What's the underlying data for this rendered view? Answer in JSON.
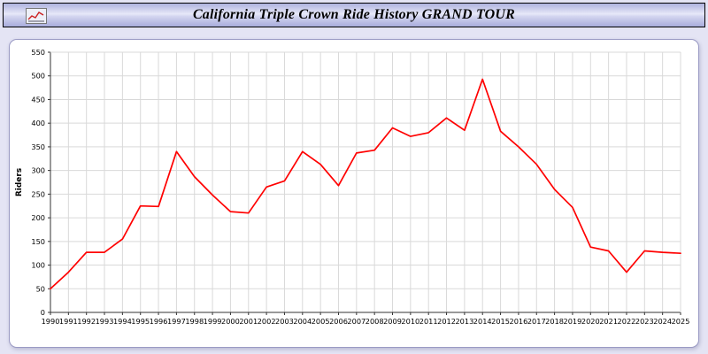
{
  "title_bar": {
    "title": "California Triple Crown Ride History GRAND TOUR"
  },
  "colors": {
    "line": "#ff0000",
    "grid": "#d9d9d9",
    "axis": "#333333",
    "tick_text": "#000000",
    "page_bg": "#e4e4f4",
    "panel_bg": "#ffffff"
  },
  "chart_data": {
    "type": "line",
    "title": "California Triple Crown Ride History GRAND TOUR",
    "xlabel": "",
    "ylabel": "Riders",
    "ylim": [
      0,
      550
    ],
    "ytick_step": 50,
    "grid": true,
    "legend_position": "none",
    "x": [
      1990,
      1991,
      1992,
      1993,
      1994,
      1995,
      1996,
      1997,
      1998,
      1999,
      2000,
      2001,
      2002,
      2003,
      2004,
      2005,
      2006,
      2007,
      2008,
      2009,
      2010,
      2011,
      2012,
      2013,
      2014,
      2015,
      2016,
      2017,
      2018,
      2019,
      2020,
      2021,
      2022,
      2023,
      2024,
      2025
    ],
    "series": [
      {
        "name": "Riders",
        "color": "#ff0000",
        "values": [
          50,
          85,
          127,
          127,
          155,
          225,
          224,
          340,
          287,
          248,
          213,
          210,
          265,
          278,
          340,
          313,
          268,
          337,
          343,
          390,
          372,
          380,
          411,
          385,
          493,
          383,
          350,
          313,
          260,
          222,
          138,
          130,
          85,
          130,
          127,
          125
        ]
      }
    ]
  }
}
